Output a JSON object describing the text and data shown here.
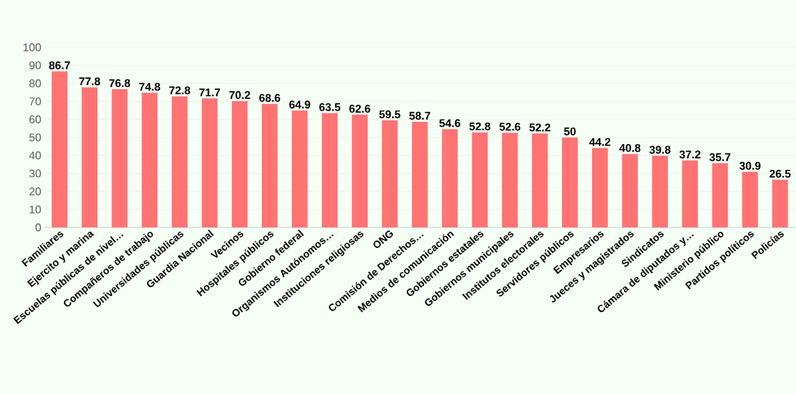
{
  "chart_data": {
    "type": "bar",
    "categories": [
      "Familiares",
      "Ejercito y marina",
      "Escuelas públicas de nivel…",
      "Compañeros de trabajo",
      "Universidades públicas",
      "Guardia Nacional",
      "Vecinos",
      "Hospitales públicos",
      "Gobierno federal",
      "Organismos Autónomos…",
      "Instituciones religiosas",
      "ONG",
      "Comisión de Derechos…",
      "Medios de comunicación",
      "Gobiernos estatales",
      "Gobiernos municipales",
      "Institutos electorales",
      "Servidores públicos",
      "Empresarios",
      "Jueces y magistrados",
      "Sindicatos",
      "Cámara de diputados y…",
      "Ministerio público",
      "Partidos políticos",
      "Policías"
    ],
    "values": [
      86.7,
      77.8,
      76.8,
      74.8,
      72.8,
      71.7,
      70.2,
      68.6,
      64.9,
      63.5,
      62.6,
      59.5,
      58.7,
      54.6,
      52.8,
      52.6,
      52.2,
      50,
      44.2,
      40.8,
      39.8,
      37.2,
      35.7,
      30.9,
      26.5
    ],
    "color": "#ff7373",
    "ylim": [
      0,
      100
    ],
    "yticks": [
      0,
      10,
      20,
      30,
      40,
      50,
      60,
      70,
      80,
      90,
      100
    ],
    "grid": "y",
    "data_labels": true
  }
}
